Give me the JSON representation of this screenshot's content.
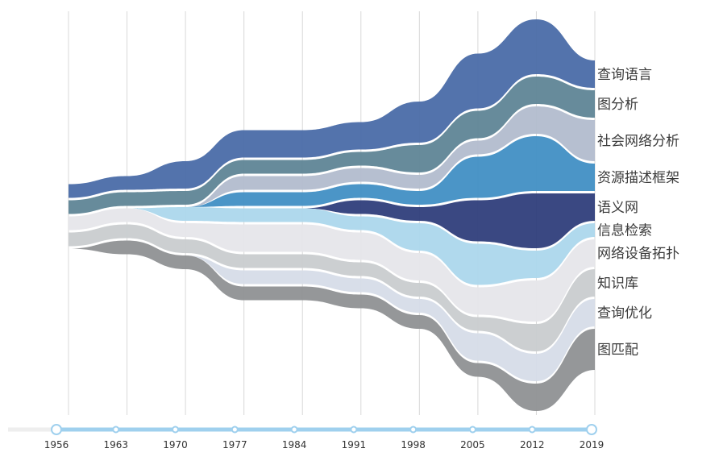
{
  "chart_data": {
    "type": "area",
    "subtype": "themeriver",
    "title": "",
    "xlabel": "",
    "ylabel": "",
    "grid": true,
    "x": [
      1956,
      1963,
      1970,
      1977,
      1984,
      1991,
      1998,
      2005,
      2012,
      2019
    ],
    "timeline_ticks": [
      "1956",
      "1963",
      "1970",
      "1977",
      "1984",
      "1991",
      "1998",
      "2005",
      "2012",
      "2019"
    ],
    "series": [
      {
        "name": "查询语言",
        "color": "#4a6ba8",
        "values": [
          1,
          1,
          2,
          2,
          2,
          2,
          3,
          4,
          4,
          2
        ]
      },
      {
        "name": "图分析",
        "color": "#5f8596",
        "values": [
          1,
          1,
          1,
          1,
          1,
          1,
          2,
          2,
          2,
          2
        ]
      },
      {
        "name": "社会网络分析",
        "color": "#b2bcce",
        "values": [
          0,
          0,
          0,
          1,
          1,
          1,
          1,
          1,
          2,
          3
        ]
      },
      {
        "name": "资源描述框架",
        "color": "#418fc4",
        "values": [
          0,
          0,
          0,
          1,
          1,
          1,
          1,
          3,
          4,
          2
        ]
      },
      {
        "name": "语义网",
        "color": "#2f3e7b",
        "values": [
          0,
          0,
          0,
          0,
          0,
          1,
          1,
          3,
          4,
          2
        ]
      },
      {
        "name": "信息检索",
        "color": "#acd7ec",
        "values": [
          0,
          0,
          1,
          1,
          1,
          1,
          2,
          3,
          2,
          1
        ]
      },
      {
        "name": "网络设备拓扑",
        "color": "#e6e6ea",
        "values": [
          1,
          1,
          1,
          2,
          2,
          2,
          2,
          2,
          3,
          2
        ]
      },
      {
        "name": "知识库",
        "color": "#c9cccf",
        "values": [
          1,
          1,
          1,
          1,
          1,
          1,
          1,
          1,
          2,
          2
        ]
      },
      {
        "name": "查询优化",
        "color": "#d6dce8",
        "values": [
          0,
          0,
          0,
          1,
          1,
          1,
          1,
          2,
          2,
          2
        ]
      },
      {
        "name": "图匹配",
        "color": "#8f9193",
        "values": [
          0,
          1,
          1,
          1,
          1,
          1,
          1,
          1,
          2,
          3
        ]
      }
    ]
  }
}
